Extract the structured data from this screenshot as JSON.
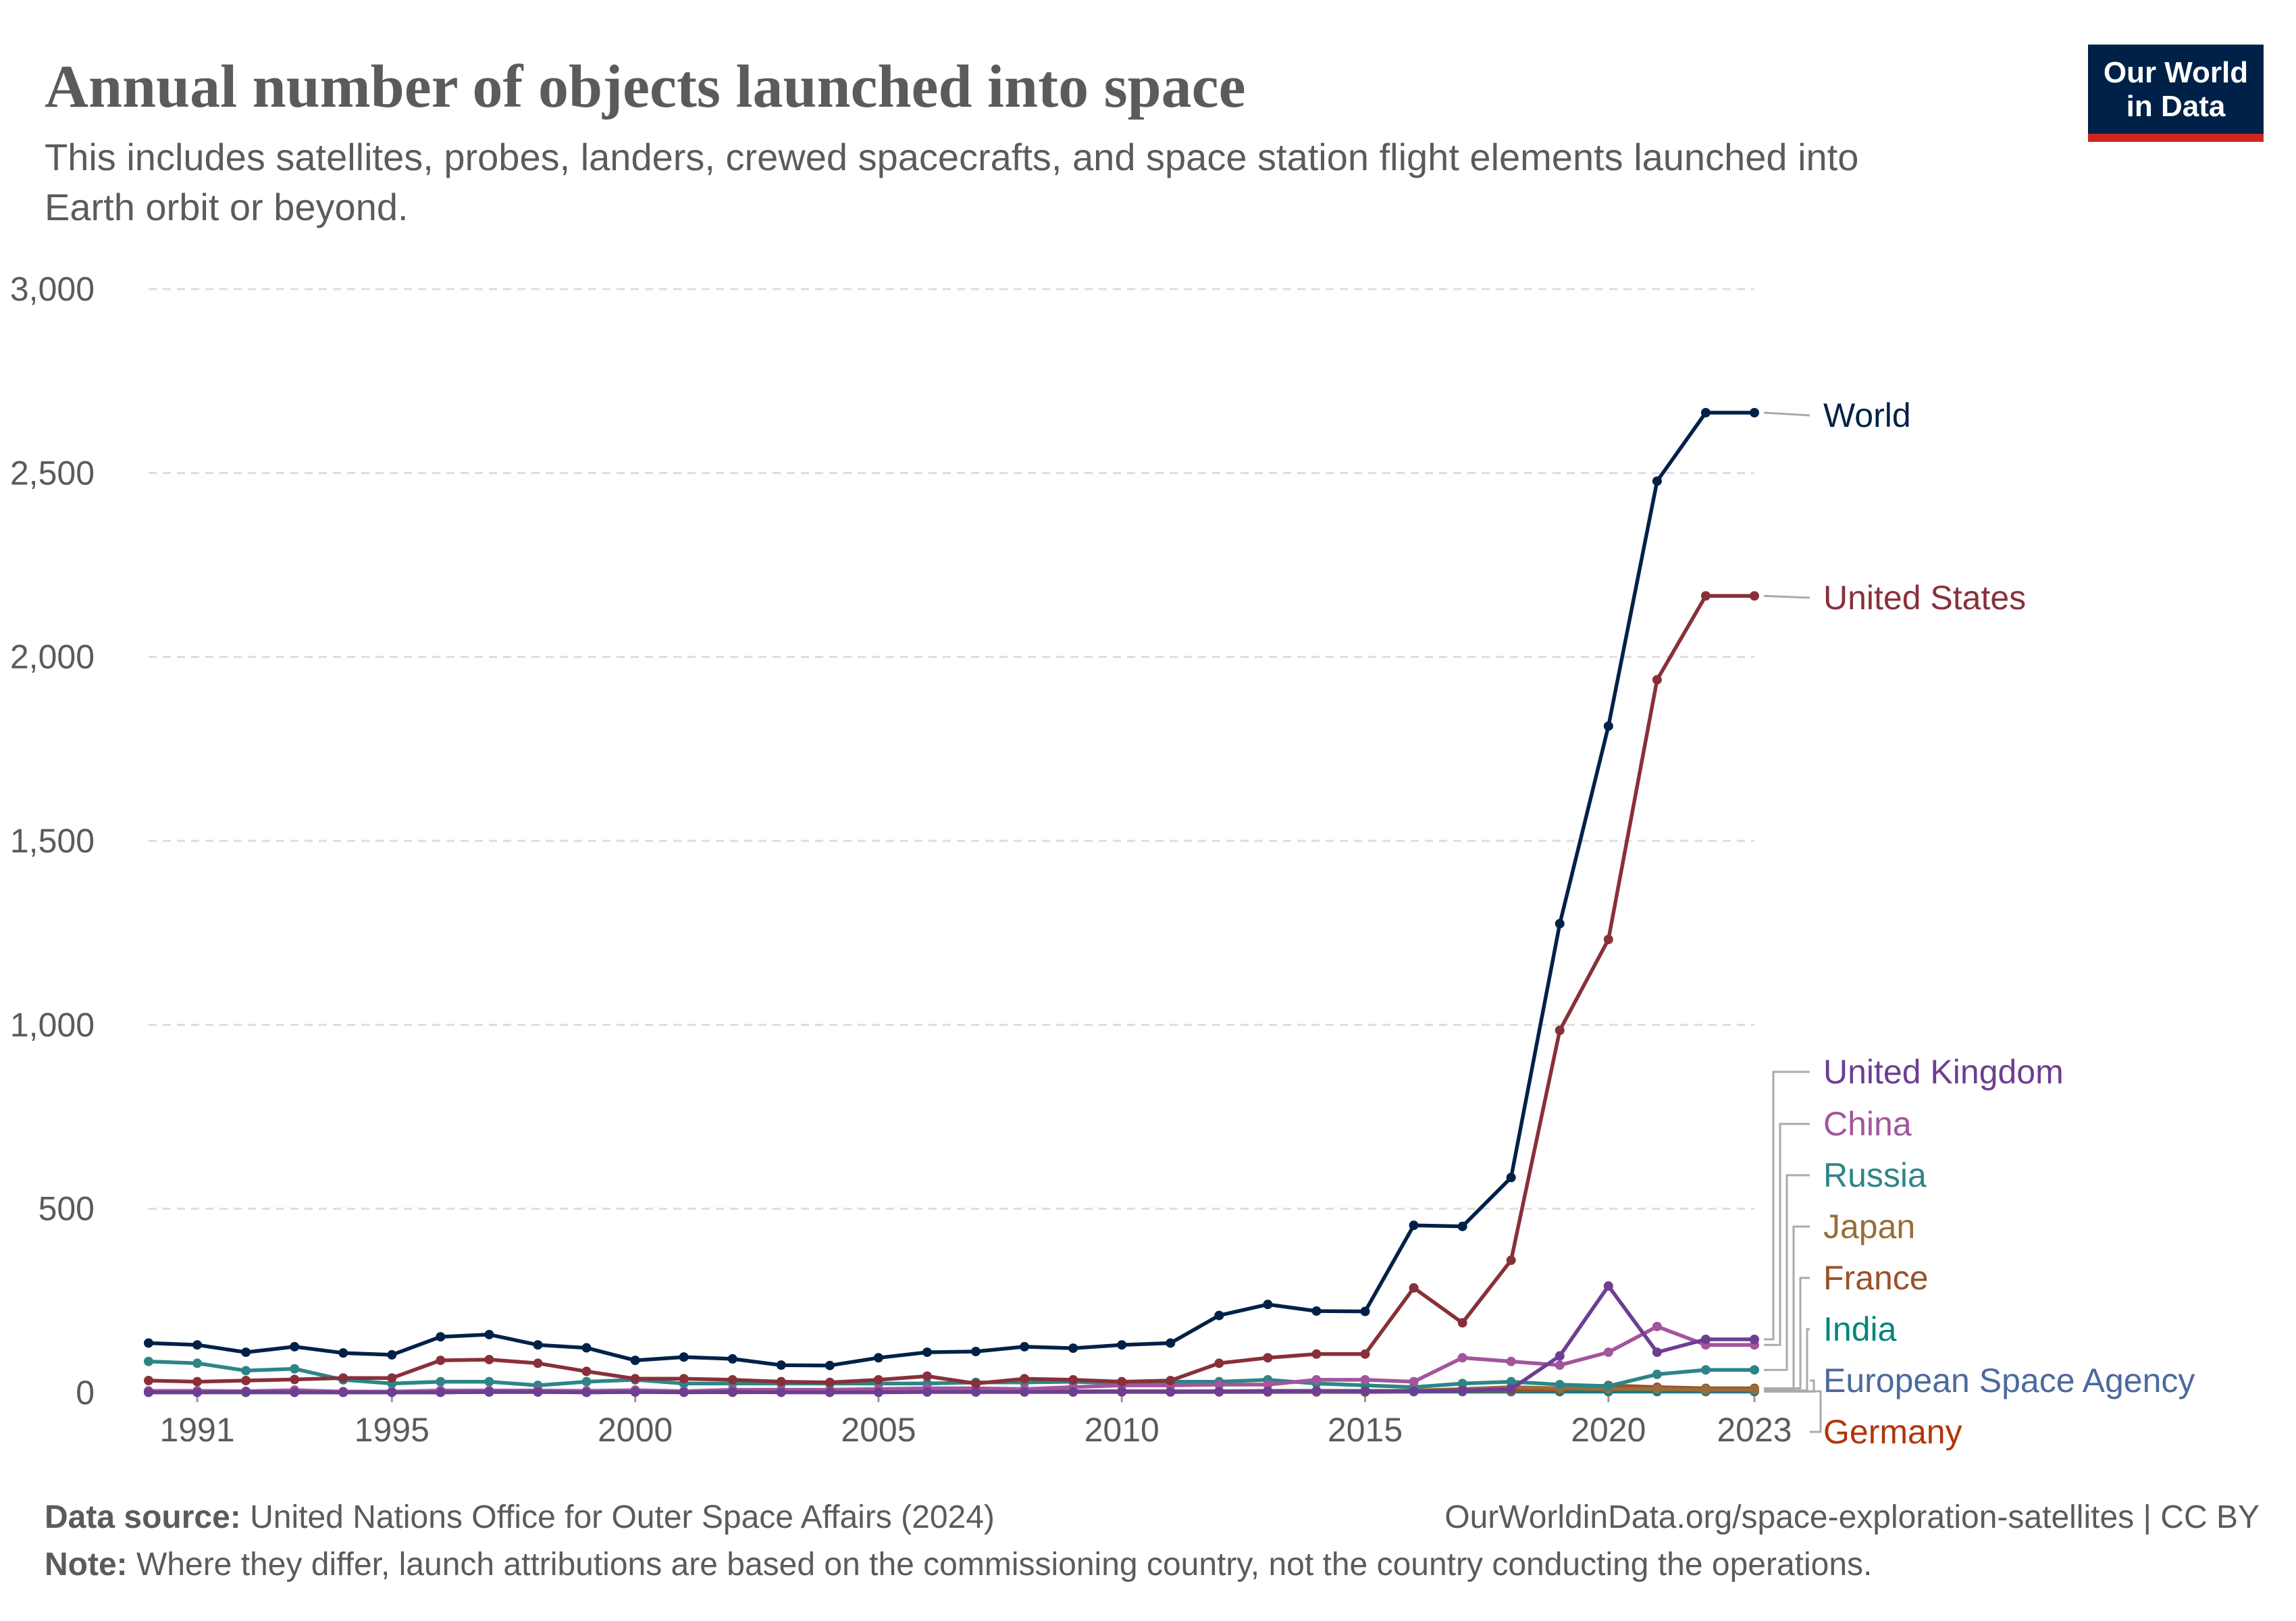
{
  "header": {
    "title": "Annual number of objects launched into space",
    "subtitle_line1": "This includes satellites, probes, landers, crewed spacecrafts, and space station flight elements launched into",
    "subtitle_line2": "Earth orbit or beyond."
  },
  "logo": {
    "line1": "Our World",
    "line2": "in Data",
    "bg_color": "#002147",
    "accent_color": "#ce261e"
  },
  "footer": {
    "source_label": "Data source:",
    "source_text": "United Nations Office for Outer Space Affairs (2024)",
    "url_text": "OurWorldinData.org/space-exploration-satellites | CC BY",
    "note_label": "Note:",
    "note_text": "Where they differ, launch attributions are based on the commissioning country, not the country conducting the operations."
  },
  "chart_data": {
    "type": "line",
    "title": "Annual number of objects launched into space",
    "xlabel": "",
    "ylabel": "",
    "xlim": [
      1990,
      2023
    ],
    "ylim": [
      0,
      3000
    ],
    "x_ticks": [
      1991,
      1995,
      2000,
      2005,
      2010,
      2015,
      2020,
      2023
    ],
    "y_ticks": [
      0,
      500,
      1000,
      1500,
      2000,
      2500,
      3000
    ],
    "y_tick_labels": [
      "0",
      "500",
      "1,000",
      "1,500",
      "2,000",
      "2,500",
      "3,000"
    ],
    "grid": true,
    "legend": "right-end labels",
    "x": [
      1990,
      1991,
      1992,
      1993,
      1994,
      1995,
      1996,
      1997,
      1998,
      1999,
      2000,
      2001,
      2002,
      2003,
      2004,
      2005,
      2006,
      2007,
      2008,
      2009,
      2010,
      2011,
      2012,
      2013,
      2014,
      2015,
      2016,
      2017,
      2018,
      2019,
      2020,
      2021,
      2022,
      2023
    ],
    "series": [
      {
        "name": "World",
        "color": "#002147",
        "values": [
          135,
          130,
          110,
          125,
          108,
          103,
          152,
          158,
          130,
          122,
          88,
          97,
          92,
          75,
          74,
          95,
          110,
          112,
          125,
          121,
          130,
          135,
          210,
          240,
          222,
          221,
          455,
          452,
          585,
          1275,
          1812,
          2478,
          2664,
          2664
        ]
      },
      {
        "name": "United States",
        "color": "#883039",
        "values": [
          33,
          30,
          33,
          36,
          40,
          40,
          88,
          90,
          80,
          58,
          38,
          38,
          35,
          30,
          28,
          35,
          45,
          25,
          38,
          35,
          30,
          33,
          80,
          95,
          105,
          105,
          285,
          190,
          360,
          985,
          1232,
          1938,
          2166,
          2166
        ]
      },
      {
        "name": "United Kingdom",
        "color": "#6d3e91",
        "values": [
          1,
          1,
          2,
          1,
          1,
          1,
          1,
          2,
          2,
          1,
          2,
          1,
          2,
          1,
          1,
          1,
          2,
          2,
          2,
          2,
          3,
          2,
          3,
          4,
          5,
          4,
          4,
          6,
          10,
          100,
          290,
          110,
          145,
          145
        ]
      },
      {
        "name": "China",
        "color": "#a2559c",
        "values": [
          5,
          5,
          4,
          7,
          3,
          3,
          6,
          6,
          6,
          5,
          7,
          4,
          8,
          8,
          8,
          10,
          12,
          12,
          10,
          15,
          20,
          20,
          22,
          22,
          35,
          35,
          30,
          95,
          85,
          75,
          110,
          180,
          130,
          130
        ]
      },
      {
        "name": "Russia",
        "color": "#2d8587",
        "values": [
          85,
          80,
          60,
          65,
          35,
          25,
          30,
          30,
          20,
          30,
          35,
          25,
          25,
          25,
          25,
          25,
          25,
          28,
          28,
          30,
          25,
          30,
          30,
          35,
          25,
          20,
          15,
          25,
          30,
          22,
          18,
          50,
          62,
          62
        ]
      },
      {
        "name": "Japan",
        "color": "#996d39",
        "values": [
          3,
          3,
          2,
          3,
          2,
          2,
          2,
          3,
          3,
          2,
          2,
          2,
          3,
          3,
          2,
          3,
          3,
          2,
          3,
          3,
          3,
          3,
          4,
          4,
          4,
          4,
          6,
          10,
          15,
          12,
          10,
          10,
          8,
          8
        ]
      },
      {
        "name": "France",
        "color": "#9a5129",
        "values": [
          4,
          4,
          3,
          4,
          3,
          3,
          3,
          4,
          4,
          3,
          3,
          3,
          4,
          3,
          3,
          4,
          4,
          3,
          4,
          4,
          4,
          4,
          4,
          5,
          5,
          5,
          5,
          6,
          6,
          8,
          20,
          15,
          12,
          12
        ]
      },
      {
        "name": "India",
        "color": "#00847e",
        "values": [
          1,
          1,
          1,
          1,
          1,
          1,
          1,
          2,
          2,
          1,
          2,
          2,
          2,
          2,
          2,
          2,
          3,
          3,
          3,
          3,
          3,
          4,
          4,
          4,
          4,
          5,
          5,
          5,
          5,
          5,
          5,
          5,
          6,
          6
        ]
      },
      {
        "name": "European Space Agency",
        "color": "#4c6a9c",
        "values": [
          2,
          2,
          2,
          2,
          2,
          2,
          2,
          2,
          3,
          3,
          3,
          2,
          3,
          3,
          2,
          3,
          3,
          3,
          3,
          3,
          3,
          3,
          3,
          3,
          3,
          3,
          3,
          3,
          3,
          3,
          3,
          3,
          3,
          3
        ]
      },
      {
        "name": "Germany",
        "color": "#b13507",
        "values": [
          2,
          2,
          1,
          2,
          1,
          2,
          1,
          2,
          2,
          2,
          2,
          2,
          1,
          2,
          1,
          2,
          2,
          2,
          2,
          2,
          2,
          2,
          2,
          2,
          2,
          2,
          3,
          3,
          3,
          3,
          3,
          4,
          4,
          4
        ]
      }
    ]
  }
}
